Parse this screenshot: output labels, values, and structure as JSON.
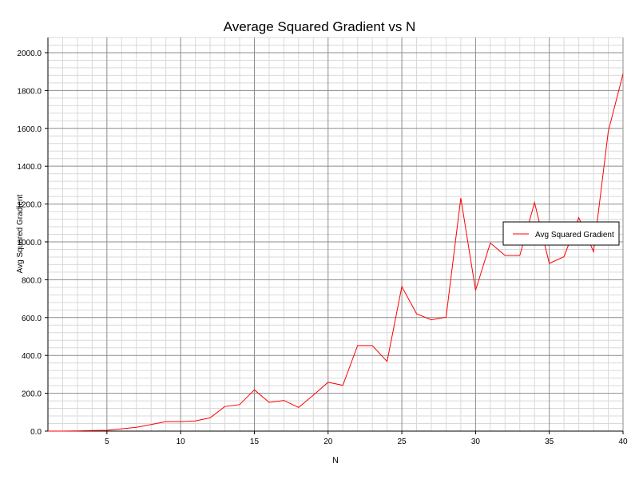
{
  "chart_data": {
    "type": "line",
    "title": "Average Squared Gradient vs N",
    "xlabel": "N",
    "ylabel": "Avg Squared Gradient",
    "xlim": [
      1,
      40
    ],
    "ylim": [
      0,
      2080
    ],
    "x_ticks": [
      5,
      10,
      15,
      20,
      25,
      30,
      35,
      40
    ],
    "y_ticks": [
      0,
      200,
      400,
      600,
      800,
      1000,
      1200,
      1400,
      1600,
      1800,
      2000
    ],
    "y_tick_labels": [
      "0.0",
      "200.0",
      "400.0",
      "600.0",
      "800.0",
      "1000.0",
      "1200.0",
      "1400.0",
      "1600.0",
      "1800.0",
      "2000.0"
    ],
    "x_minor_step": 1,
    "y_minor_step": 40,
    "grid": true,
    "legend_position": "right",
    "series": [
      {
        "name": "Avg Squared Gradient",
        "color": "#ff0000",
        "x": [
          1,
          2,
          3,
          4,
          5,
          6,
          7,
          8,
          9,
          10,
          11,
          12,
          13,
          14,
          15,
          16,
          17,
          18,
          19,
          20,
          21,
          22,
          23,
          24,
          25,
          26,
          27,
          28,
          29,
          30,
          31,
          32,
          33,
          34,
          35,
          36,
          37,
          38,
          39,
          40
        ],
        "y": [
          0,
          0,
          1,
          3,
          4,
          12,
          20,
          35,
          50,
          50,
          54,
          70,
          130,
          140,
          218,
          152,
          162,
          125,
          190,
          258,
          242,
          452,
          452,
          368,
          764,
          620,
          588,
          602,
          1232,
          744,
          994,
          928,
          928,
          1208,
          886,
          922,
          1128,
          948,
          1584,
          1888
        ]
      }
    ]
  }
}
